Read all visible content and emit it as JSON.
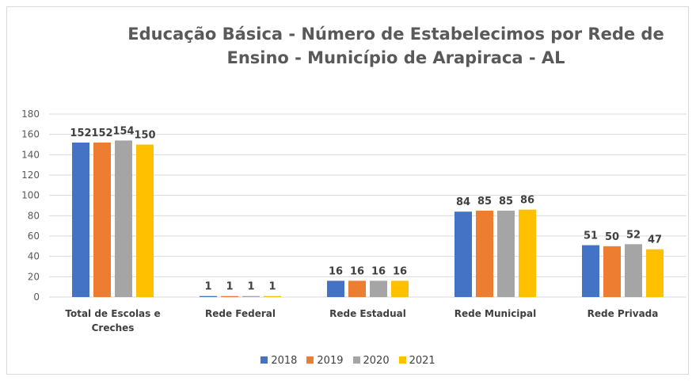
{
  "chart_data": {
    "type": "bar",
    "title": "Educação Básica - Número de Estabelecimos por Rede de Ensino -  Município de Arapiraca - AL",
    "categories": [
      "Total de Escolas e Creches",
      "Rede Federal",
      "Rede Estadual",
      "Rede Municipal",
      "Rede Privada"
    ],
    "series": [
      {
        "name": "2018",
        "color": "#4472c4",
        "values": [
          152,
          1,
          16,
          84,
          51
        ]
      },
      {
        "name": "2019",
        "color": "#ed7d31",
        "values": [
          152,
          1,
          16,
          85,
          50
        ]
      },
      {
        "name": "2020",
        "color": "#a5a5a5",
        "values": [
          154,
          1,
          16,
          85,
          52
        ]
      },
      {
        "name": "2021",
        "color": "#ffc000",
        "values": [
          150,
          1,
          16,
          86,
          47
        ]
      }
    ],
    "ylim": [
      0,
      180
    ],
    "yticks": [
      0,
      20,
      40,
      60,
      80,
      100,
      120,
      140,
      160,
      180
    ],
    "grid": true,
    "legend": "bottom"
  }
}
